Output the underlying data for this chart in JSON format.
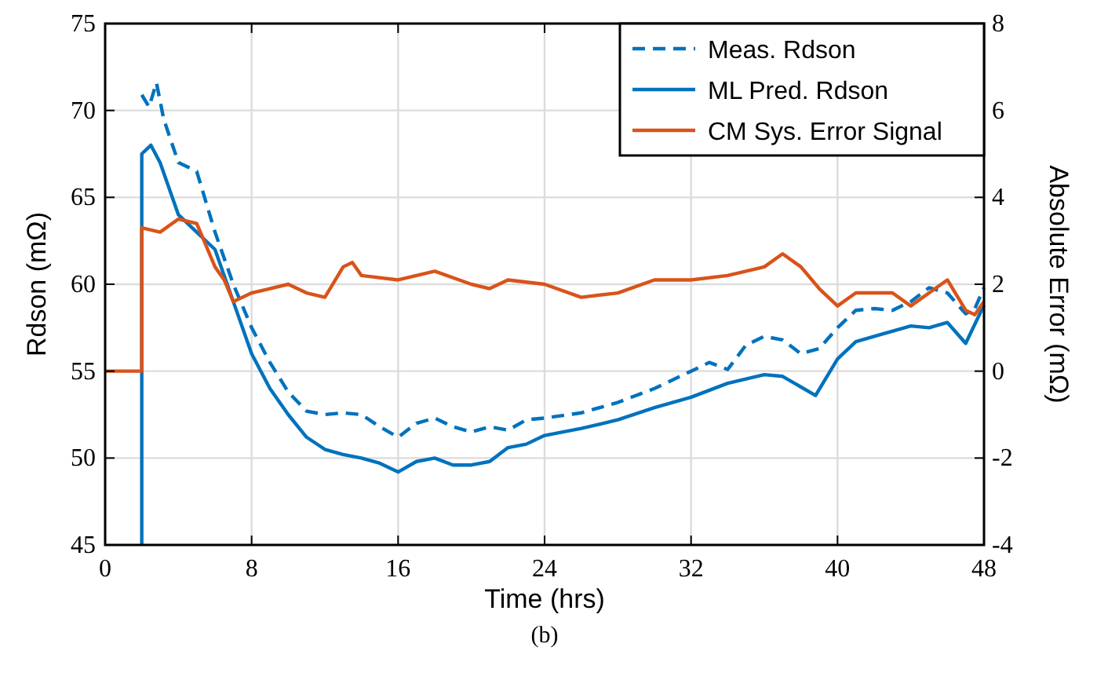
{
  "chart_data": {
    "type": "line",
    "xlabel": "Time (hrs)",
    "ylabel": "Rdson (mΩ)",
    "y2label": "Absolute Error (mΩ)",
    "annotations": [
      "(b)"
    ],
    "xlim": [
      0,
      48
    ],
    "xticks": [
      0,
      8,
      16,
      24,
      32,
      40,
      48
    ],
    "ylim": [
      45,
      75
    ],
    "yticks": [
      45,
      50,
      55,
      60,
      65,
      70,
      75
    ],
    "y2lim": [
      -4,
      8
    ],
    "y2ticks": [
      -4,
      -2,
      0,
      2,
      4,
      6,
      8
    ],
    "grid": true,
    "legend": "top right",
    "series": [
      {
        "name": "Meas. Rdson",
        "color": "#0072bd",
        "line_style": "dashed",
        "x": [
          2,
          2.4,
          2.8,
          3.2,
          4,
          5,
          6,
          7,
          8,
          9,
          10,
          11,
          12,
          13,
          14,
          15,
          16,
          17,
          18,
          19,
          20,
          21,
          22,
          23,
          24,
          26,
          28,
          30,
          31,
          32,
          33,
          34,
          35,
          36,
          37,
          38,
          39,
          40,
          41,
          42,
          43,
          44,
          45,
          46,
          47,
          47.5,
          48
        ],
        "values": [
          70.9,
          70.2,
          71.6,
          69.5,
          67,
          66.5,
          63,
          60,
          57.5,
          55.5,
          53.8,
          52.7,
          52.5,
          52.6,
          52.5,
          51.8,
          51.2,
          52,
          52.3,
          51.8,
          51.5,
          51.8,
          51.6,
          52.2,
          52.3,
          52.6,
          53.2,
          54,
          54.5,
          55,
          55.5,
          55.1,
          56.5,
          57,
          56.8,
          56,
          56.3,
          57.5,
          58.5,
          58.6,
          58.5,
          59,
          59.8,
          59.5,
          58.3,
          58.6,
          59.8
        ]
      },
      {
        "name": "ML Pred. Rdson",
        "color": "#0072bd",
        "line_style": "solid",
        "x": [
          2,
          2,
          2.5,
          3,
          4,
          5,
          6,
          7,
          8,
          9,
          10,
          11,
          12,
          13,
          14,
          15,
          16,
          17,
          18,
          19,
          20,
          21,
          22,
          23,
          24,
          26,
          28,
          30,
          32,
          34,
          36,
          37,
          38.8,
          40,
          41,
          42,
          44,
          45,
          46,
          47,
          48
        ],
        "values": [
          45,
          67.5,
          68,
          67,
          64,
          63,
          62,
          59,
          56,
          54,
          52.5,
          51.2,
          50.5,
          50.2,
          50,
          49.7,
          49.2,
          49.8,
          50,
          49.6,
          49.6,
          49.8,
          50.6,
          50.8,
          51.3,
          51.7,
          52.2,
          52.9,
          53.5,
          54.3,
          54.8,
          54.7,
          53.6,
          55.7,
          56.7,
          57,
          57.6,
          57.5,
          57.8,
          56.6,
          58.8
        ]
      },
      {
        "name": "CM Sys. Error Signal",
        "color": "#d95319",
        "line_style": "solid",
        "axis": "y2",
        "x": [
          0,
          2,
          2,
          3,
          4,
          5,
          6,
          6.5,
          7,
          8,
          9,
          10,
          11,
          12,
          13,
          13.5,
          14,
          16,
          18,
          20,
          21,
          22,
          24,
          26,
          28,
          30,
          32,
          34,
          36,
          37,
          38,
          39,
          40,
          41,
          42,
          43,
          44,
          45,
          46,
          47,
          47.5,
          48
        ],
        "values": [
          0,
          0,
          3.3,
          3.2,
          3.5,
          3.4,
          2.4,
          2.1,
          1.6,
          1.8,
          1.9,
          2.0,
          1.8,
          1.7,
          2.4,
          2.5,
          2.2,
          2.1,
          2.3,
          2.0,
          1.9,
          2.1,
          2.0,
          1.7,
          1.8,
          2.1,
          2.1,
          2.2,
          2.4,
          2.7,
          2.4,
          1.9,
          1.5,
          1.8,
          1.8,
          1.8,
          1.5,
          1.8,
          2.1,
          1.4,
          1.3,
          1.6
        ]
      }
    ]
  }
}
